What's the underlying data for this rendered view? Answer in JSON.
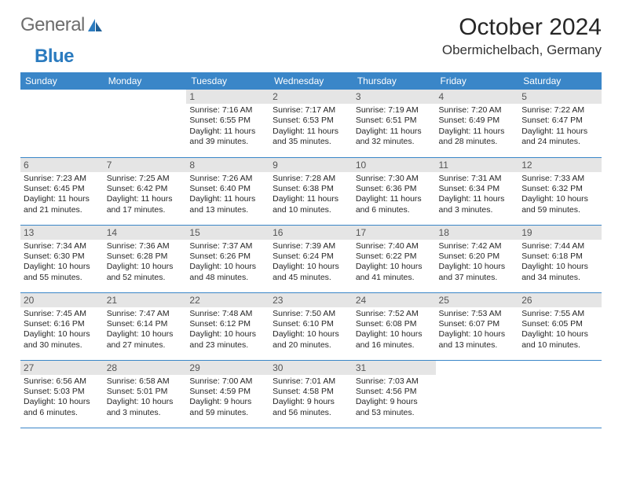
{
  "brand": {
    "part1": "General",
    "part2": "Blue"
  },
  "title": "October 2024",
  "location": "Obermichelbach, Germany",
  "colors": {
    "header_bg": "#3a86c8",
    "header_text": "#ffffff",
    "border": "#3a86c8",
    "daynum_bg": "#e5e5e5",
    "daynum_text": "#555555",
    "body_text": "#262626",
    "logo_gray": "#6d6d6d",
    "logo_blue": "#2b7bbf"
  },
  "day_headers": [
    "Sunday",
    "Monday",
    "Tuesday",
    "Wednesday",
    "Thursday",
    "Friday",
    "Saturday"
  ],
  "weeks": [
    [
      null,
      null,
      {
        "n": "1",
        "sunrise": "7:16 AM",
        "sunset": "6:55 PM",
        "daylight": "11 hours and 39 minutes."
      },
      {
        "n": "2",
        "sunrise": "7:17 AM",
        "sunset": "6:53 PM",
        "daylight": "11 hours and 35 minutes."
      },
      {
        "n": "3",
        "sunrise": "7:19 AM",
        "sunset": "6:51 PM",
        "daylight": "11 hours and 32 minutes."
      },
      {
        "n": "4",
        "sunrise": "7:20 AM",
        "sunset": "6:49 PM",
        "daylight": "11 hours and 28 minutes."
      },
      {
        "n": "5",
        "sunrise": "7:22 AM",
        "sunset": "6:47 PM",
        "daylight": "11 hours and 24 minutes."
      }
    ],
    [
      {
        "n": "6",
        "sunrise": "7:23 AM",
        "sunset": "6:45 PM",
        "daylight": "11 hours and 21 minutes."
      },
      {
        "n": "7",
        "sunrise": "7:25 AM",
        "sunset": "6:42 PM",
        "daylight": "11 hours and 17 minutes."
      },
      {
        "n": "8",
        "sunrise": "7:26 AM",
        "sunset": "6:40 PM",
        "daylight": "11 hours and 13 minutes."
      },
      {
        "n": "9",
        "sunrise": "7:28 AM",
        "sunset": "6:38 PM",
        "daylight": "11 hours and 10 minutes."
      },
      {
        "n": "10",
        "sunrise": "7:30 AM",
        "sunset": "6:36 PM",
        "daylight": "11 hours and 6 minutes."
      },
      {
        "n": "11",
        "sunrise": "7:31 AM",
        "sunset": "6:34 PM",
        "daylight": "11 hours and 3 minutes."
      },
      {
        "n": "12",
        "sunrise": "7:33 AM",
        "sunset": "6:32 PM",
        "daylight": "10 hours and 59 minutes."
      }
    ],
    [
      {
        "n": "13",
        "sunrise": "7:34 AM",
        "sunset": "6:30 PM",
        "daylight": "10 hours and 55 minutes."
      },
      {
        "n": "14",
        "sunrise": "7:36 AM",
        "sunset": "6:28 PM",
        "daylight": "10 hours and 52 minutes."
      },
      {
        "n": "15",
        "sunrise": "7:37 AM",
        "sunset": "6:26 PM",
        "daylight": "10 hours and 48 minutes."
      },
      {
        "n": "16",
        "sunrise": "7:39 AM",
        "sunset": "6:24 PM",
        "daylight": "10 hours and 45 minutes."
      },
      {
        "n": "17",
        "sunrise": "7:40 AM",
        "sunset": "6:22 PM",
        "daylight": "10 hours and 41 minutes."
      },
      {
        "n": "18",
        "sunrise": "7:42 AM",
        "sunset": "6:20 PM",
        "daylight": "10 hours and 37 minutes."
      },
      {
        "n": "19",
        "sunrise": "7:44 AM",
        "sunset": "6:18 PM",
        "daylight": "10 hours and 34 minutes."
      }
    ],
    [
      {
        "n": "20",
        "sunrise": "7:45 AM",
        "sunset": "6:16 PM",
        "daylight": "10 hours and 30 minutes."
      },
      {
        "n": "21",
        "sunrise": "7:47 AM",
        "sunset": "6:14 PM",
        "daylight": "10 hours and 27 minutes."
      },
      {
        "n": "22",
        "sunrise": "7:48 AM",
        "sunset": "6:12 PM",
        "daylight": "10 hours and 23 minutes."
      },
      {
        "n": "23",
        "sunrise": "7:50 AM",
        "sunset": "6:10 PM",
        "daylight": "10 hours and 20 minutes."
      },
      {
        "n": "24",
        "sunrise": "7:52 AM",
        "sunset": "6:08 PM",
        "daylight": "10 hours and 16 minutes."
      },
      {
        "n": "25",
        "sunrise": "7:53 AM",
        "sunset": "6:07 PM",
        "daylight": "10 hours and 13 minutes."
      },
      {
        "n": "26",
        "sunrise": "7:55 AM",
        "sunset": "6:05 PM",
        "daylight": "10 hours and 10 minutes."
      }
    ],
    [
      {
        "n": "27",
        "sunrise": "6:56 AM",
        "sunset": "5:03 PM",
        "daylight": "10 hours and 6 minutes."
      },
      {
        "n": "28",
        "sunrise": "6:58 AM",
        "sunset": "5:01 PM",
        "daylight": "10 hours and 3 minutes."
      },
      {
        "n": "29",
        "sunrise": "7:00 AM",
        "sunset": "4:59 PM",
        "daylight": "9 hours and 59 minutes."
      },
      {
        "n": "30",
        "sunrise": "7:01 AM",
        "sunset": "4:58 PM",
        "daylight": "9 hours and 56 minutes."
      },
      {
        "n": "31",
        "sunrise": "7:03 AM",
        "sunset": "4:56 PM",
        "daylight": "9 hours and 53 minutes."
      },
      null,
      null
    ]
  ],
  "labels": {
    "sunrise": "Sunrise: ",
    "sunset": "Sunset: ",
    "daylight": "Daylight: "
  }
}
